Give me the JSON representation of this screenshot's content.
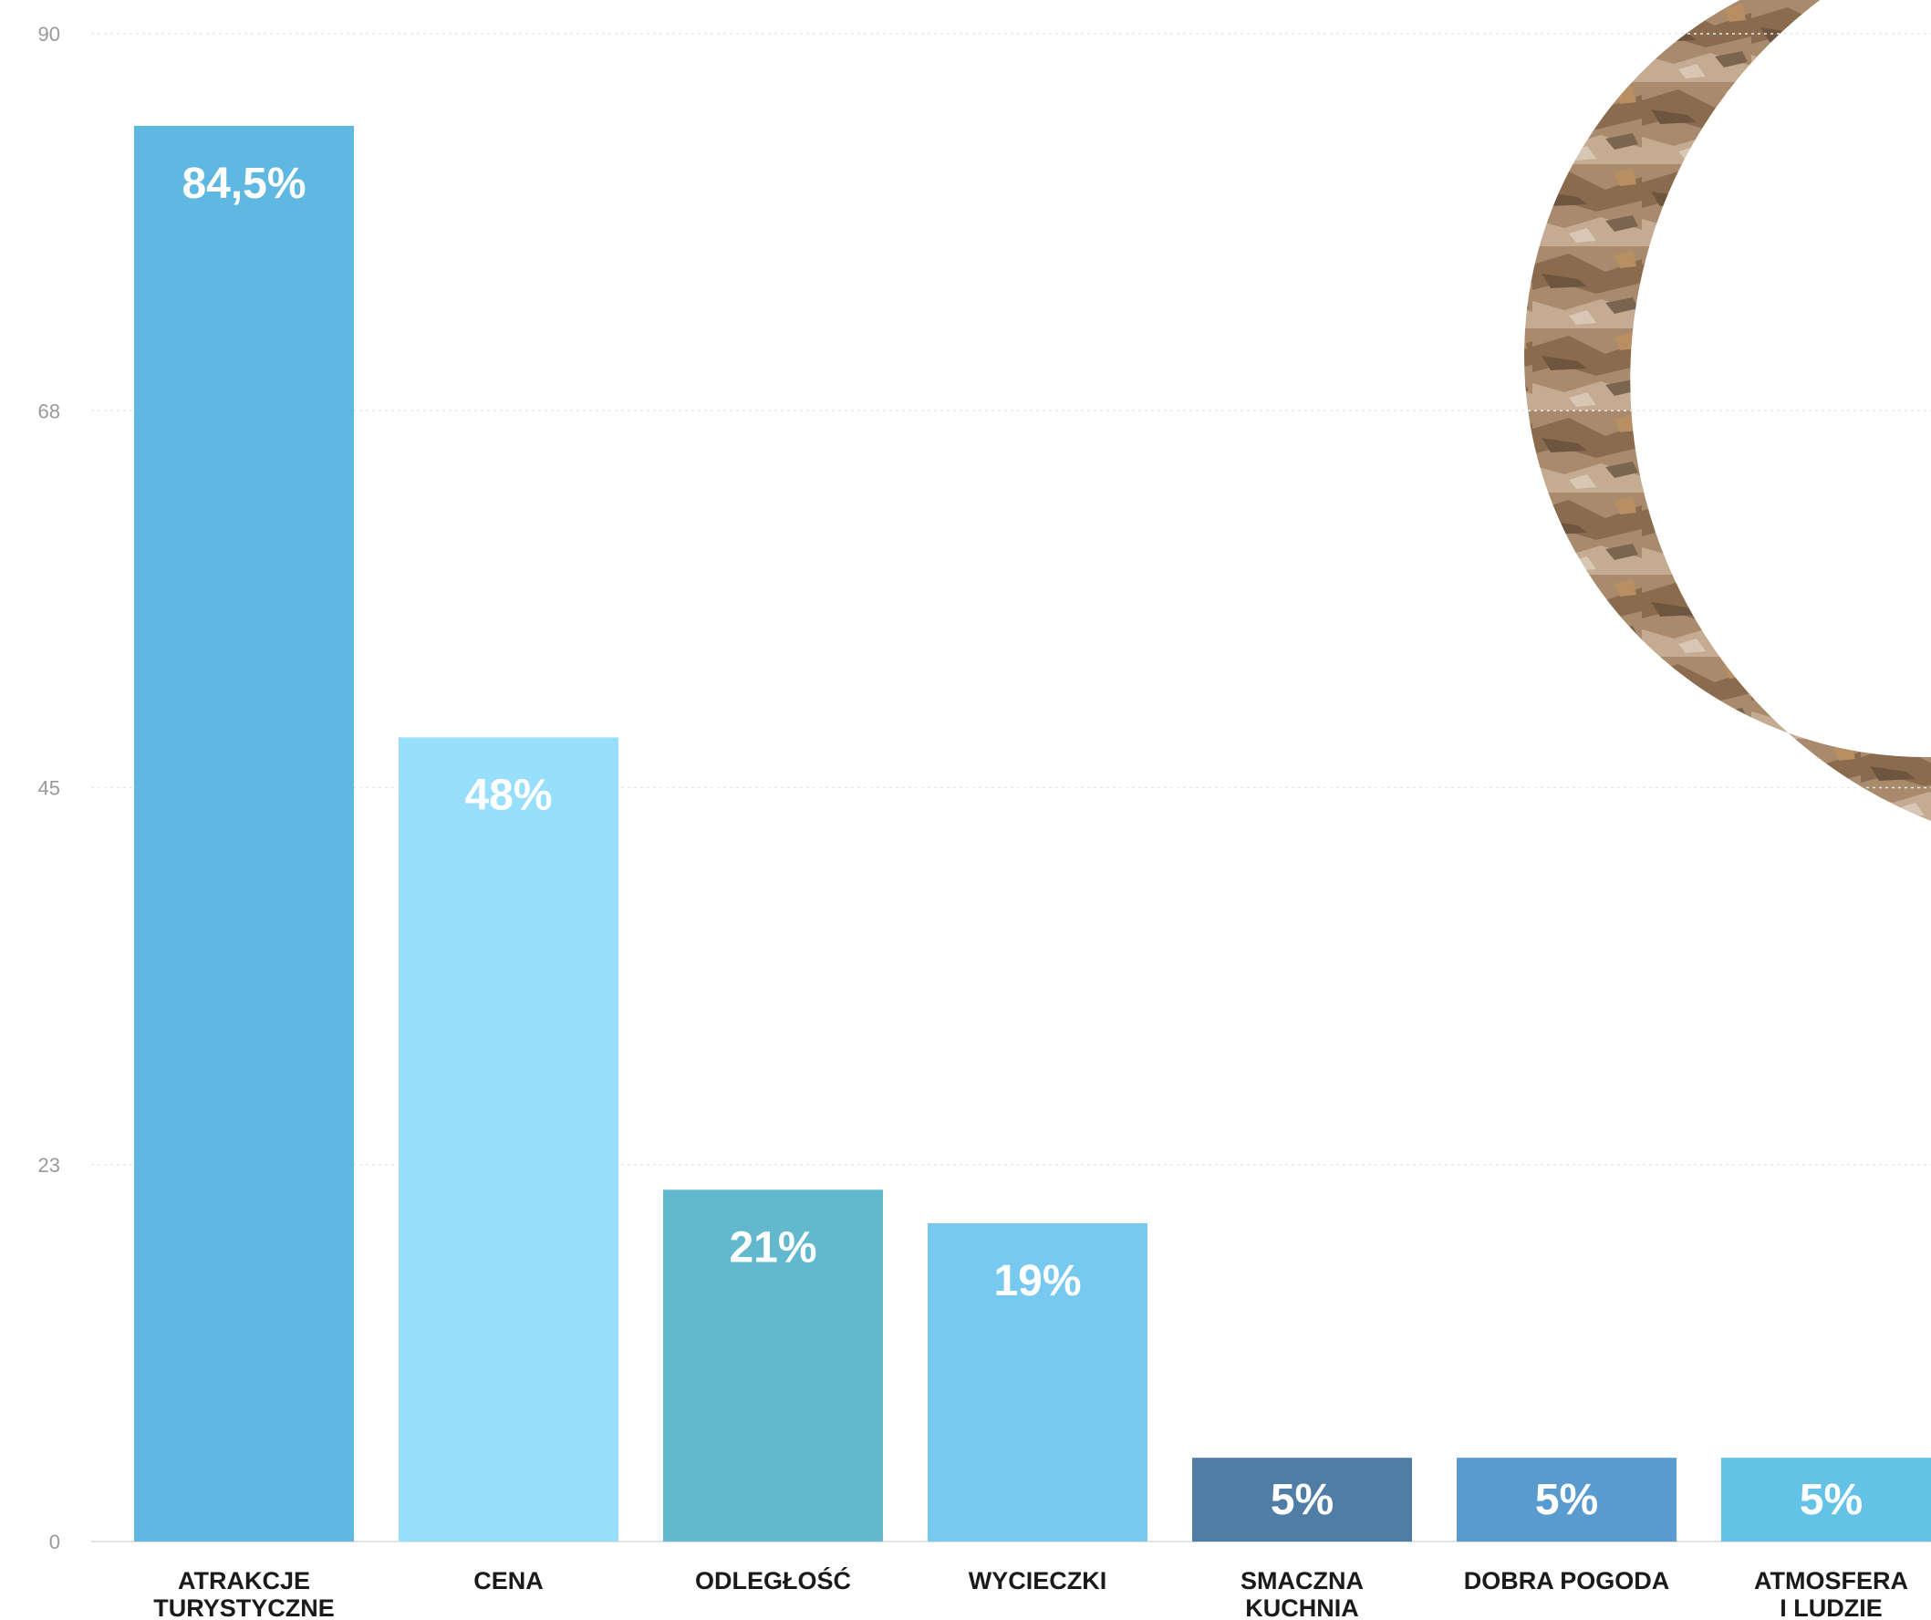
{
  "chart_data": {
    "type": "bar",
    "categories": [
      [
        "ATRAKCJE",
        "TURYSTYCZNE"
      ],
      [
        "CENA"
      ],
      [
        "ODLEGŁOŚĆ"
      ],
      [
        "WYCIECZKI"
      ],
      [
        "SMACZNA",
        "KUCHNIA"
      ],
      [
        "DOBRA POGODA"
      ],
      [
        "ATMOSFERA",
        "I LUDZIE"
      ]
    ],
    "values": [
      84.5,
      48,
      21,
      19,
      5,
      5,
      5
    ],
    "value_labels": [
      "84,5%",
      "48%",
      "21%",
      "19%",
      "5%",
      "5%",
      "5%"
    ],
    "colors": [
      "#5fb8e1",
      "#97dffc",
      "#62b9ce",
      "#77c9ef",
      "#4f7da6",
      "#5a9bcf",
      "#64c2e7"
    ],
    "yticks": [
      "0",
      "23",
      "45",
      "68",
      "90"
    ],
    "ytick_values": [
      0,
      22.5,
      45,
      67.5,
      90
    ],
    "ylim": [
      0,
      90
    ],
    "grid": true,
    "title": "",
    "xlabel": "",
    "ylabel": ""
  },
  "decoration": {
    "photo_ring_icon": "rocky-cliff-arc"
  }
}
